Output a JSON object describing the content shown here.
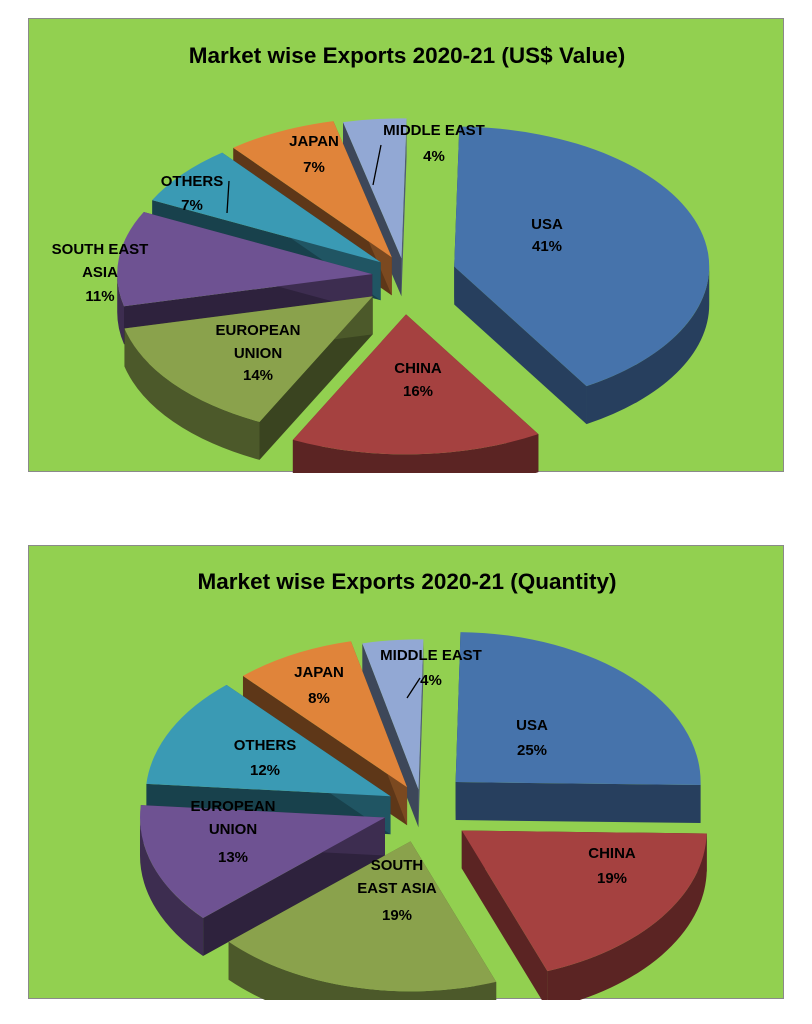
{
  "colors": {
    "background": "#92d050",
    "usa": "#4673ab",
    "china": "#a54140",
    "eu_value": "#8aa24c",
    "southeast_asia_value": "#6e5292",
    "others": "#3a9ab4",
    "japan": "#e0843a",
    "middle_east": "#92a8d4",
    "southeast_asia_qty": "#8aa24c",
    "eu_qty": "#6e5292"
  },
  "chart_data": [
    {
      "type": "pie",
      "style": "3d-exploded",
      "title": "Market wise Exports 2020-21 (US$ Value)",
      "slices": [
        {
          "label": "USA",
          "value": 41,
          "text": "41%"
        },
        {
          "label": "CHINA",
          "value": 16,
          "text": "16%"
        },
        {
          "label": "EUROPEAN UNION",
          "value": 14,
          "text": "14%"
        },
        {
          "label": "SOUTH EAST ASIA",
          "value": 11,
          "text": "11%"
        },
        {
          "label": "OTHERS",
          "value": 7,
          "text": "7%"
        },
        {
          "label": "JAPAN",
          "value": 7,
          "text": "7%"
        },
        {
          "label": "MIDDLE EAST",
          "value": 4,
          "text": "4%"
        }
      ]
    },
    {
      "type": "pie",
      "style": "3d-exploded",
      "title": "Market wise Exports 2020-21 (Quantity)",
      "slices": [
        {
          "label": "USA",
          "value": 25,
          "text": "25%"
        },
        {
          "label": "CHINA",
          "value": 19,
          "text": "19%"
        },
        {
          "label": "SOUTH EAST ASIA",
          "value": 19,
          "text": "19%"
        },
        {
          "label": "EUROPEAN UNION",
          "value": 13,
          "text": "13%"
        },
        {
          "label": "OTHERS",
          "value": 12,
          "text": "12%"
        },
        {
          "label": "JAPAN",
          "value": 8,
          "text": "8%"
        },
        {
          "label": "MIDDLE EAST",
          "value": 4,
          "text": "4%"
        }
      ]
    }
  ]
}
